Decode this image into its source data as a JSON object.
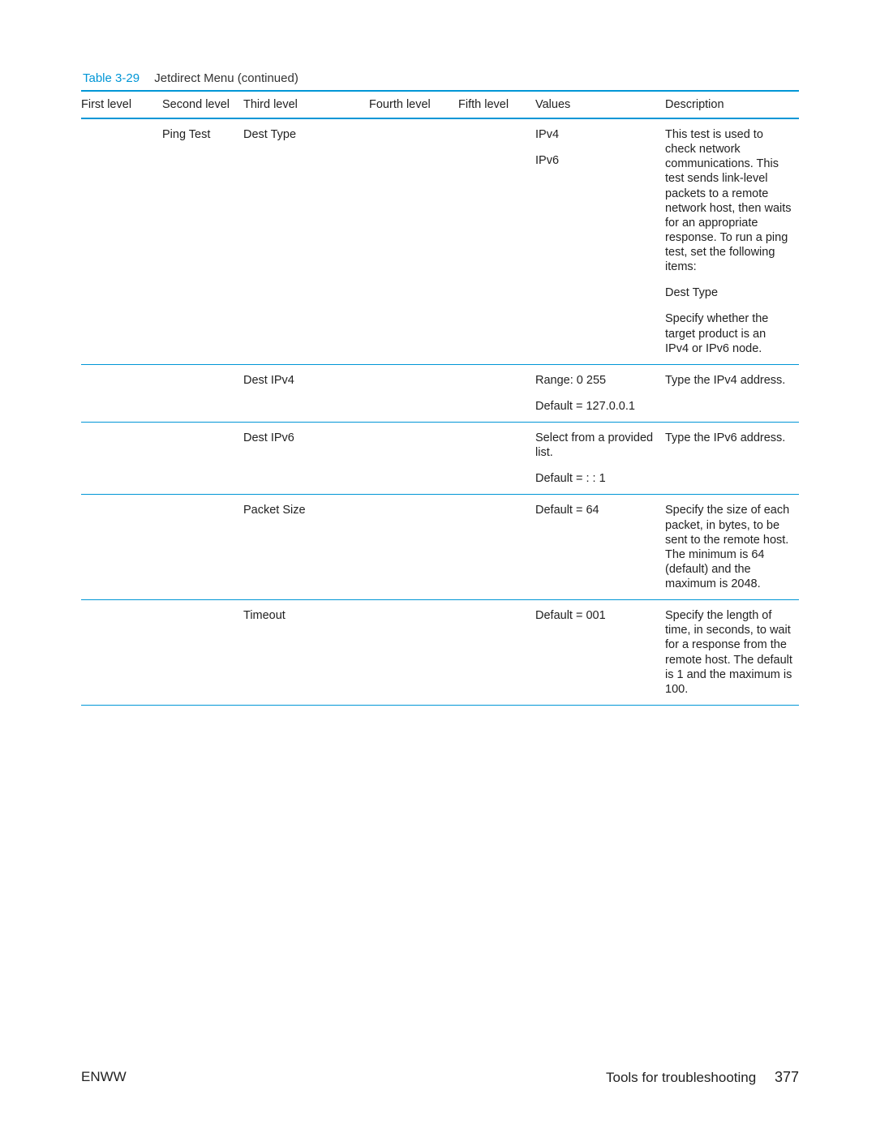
{
  "caption": {
    "number": "Table 3-29",
    "title": "Jetdirect Menu (continued)"
  },
  "columns": [
    "First level",
    "Second level",
    "Third level",
    "Fou",
    "rth level",
    "Fifth level",
    "Values",
    "Description"
  ],
  "rows": {
    "r0": {
      "second": "Ping Test",
      "third": "Dest Type",
      "values_p1": "IPv4",
      "values_p2": "IPv6",
      "desc_p1": "This test is used to check network communications. This test sends link-level packets to a remote network host, then waits for an appropriate response. To run a ping test, set the following items:",
      "desc_p2": "Dest Type",
      "desc_p3": "Specify whether the target product is an IPv4 or IPv6 node."
    },
    "r1": {
      "third": "Dest IPv4",
      "values_p1": "Range: 0   255",
      "values_p2": "Default = 127.0.0.1",
      "desc_p1": "Type the IPv4 address."
    },
    "r2": {
      "third": "Dest IPv6",
      "values_p1": "Select from a provided list.",
      "values_p2": "Default = : : 1",
      "desc_p1": "Type the IPv6 address."
    },
    "r3": {
      "third": "Packet Size",
      "values_p1": "Default = 64",
      "desc_p1": "Specify the size of each packet, in bytes, to be sent to the remote host. The minimum is 64 (default) and the maximum is 2048."
    },
    "r4": {
      "third": "Timeout",
      "values_p1": "Default = 001",
      "desc_p1": "Specify the length of time, in seconds, to wait for a response from the remote host. The default is 1 and the maximum is 100."
    }
  },
  "footer": {
    "left": "ENWW",
    "rightText": "Tools for troubleshooting",
    "pageNumber": "377"
  },
  "style": {
    "accent": "#0096d6",
    "text": "#222222",
    "bg": "#ffffff",
    "fontsize_body": 14.5,
    "fontsize_caption": 15,
    "fontsize_footer": 17
  }
}
